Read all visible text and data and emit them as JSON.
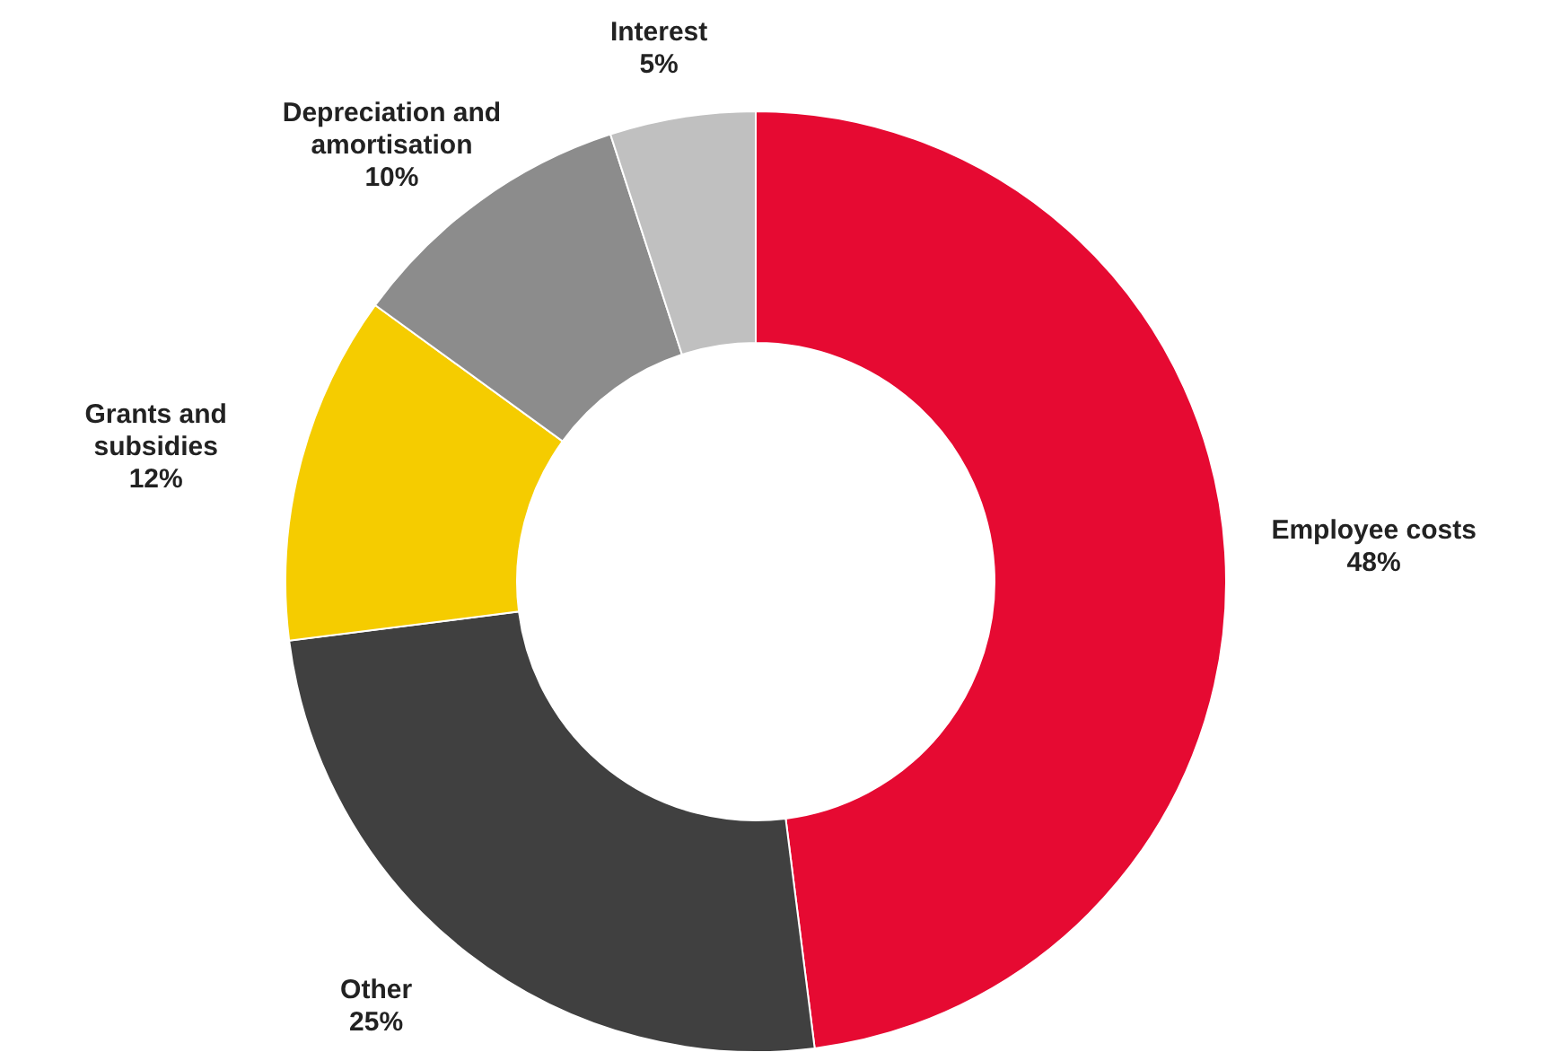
{
  "chart_data": {
    "type": "donut",
    "categories": [
      "Employee costs",
      "Other",
      "Grants and subsidies",
      "Depreciation and amortisation",
      "Interest"
    ],
    "values": [
      48,
      25,
      12,
      10,
      5
    ],
    "colors": [
      "#e60a32",
      "#404040",
      "#f5cc00",
      "#8c8c8c",
      "#c0c0c0"
    ],
    "value_labels": [
      "48%",
      "25%",
      "12%",
      "10%",
      "5%"
    ],
    "legend": false
  }
}
